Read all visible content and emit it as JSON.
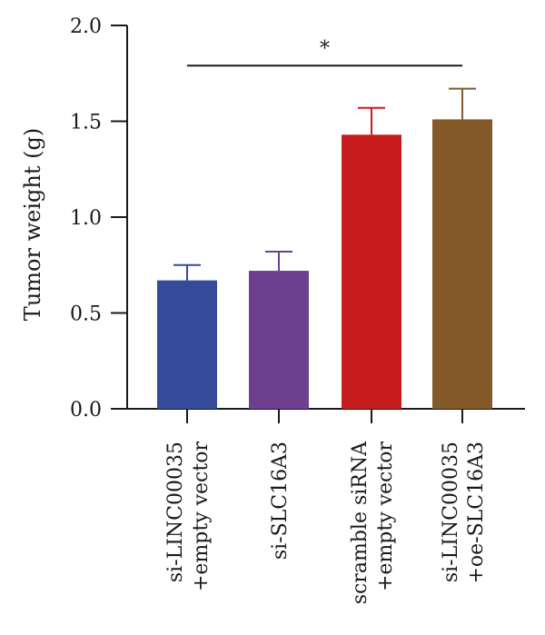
{
  "chart_data": {
    "type": "bar",
    "ylabel": "Tumor weight (g)",
    "ylim": [
      0,
      2.0
    ],
    "yticks": [
      "0.0",
      "0.5",
      "1.0",
      "1.5",
      "2.0"
    ],
    "yticks_values": [
      0,
      0.5,
      1.0,
      1.5,
      2.0
    ],
    "categories": [
      [
        "si-LINC00035",
        "+empty vector"
      ],
      [
        "si-SLC16A3"
      ],
      [
        "scramble siRNA",
        "+empty vector"
      ],
      [
        "si-LINC00035",
        "+oe-SLC16A3"
      ]
    ],
    "values": [
      0.67,
      0.72,
      1.43,
      1.51
    ],
    "errors": [
      0.08,
      0.1,
      0.14,
      0.16
    ],
    "colors": [
      "#364a9a",
      "#6d3f8f",
      "#c71c1e",
      "#83592a"
    ],
    "significance": [
      {
        "from": 0,
        "to": 3,
        "label": "*",
        "y": 1.79
      }
    ]
  }
}
